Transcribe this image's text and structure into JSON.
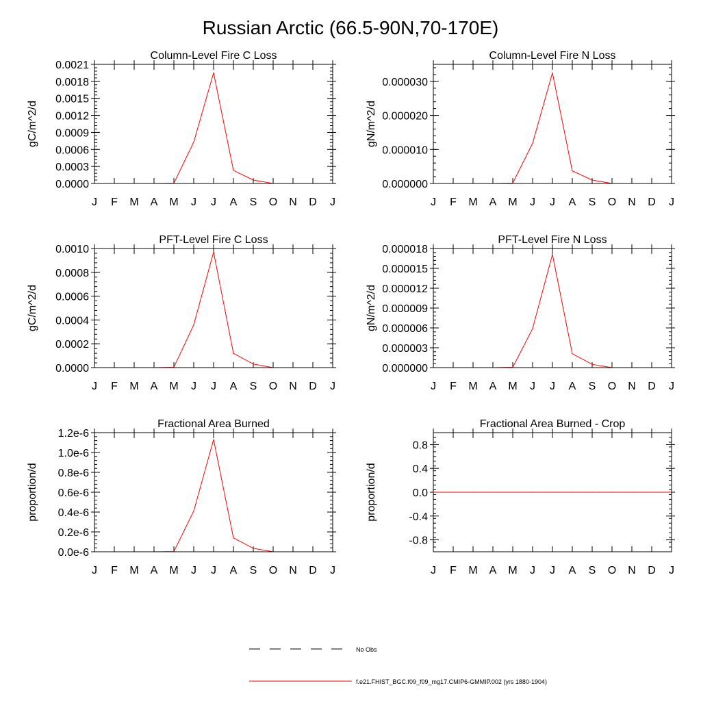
{
  "figure": {
    "title": "Russian Arctic (66.5-90N,70-170E)"
  },
  "legend": {
    "entries": [
      {
        "label": "No Obs",
        "style": "dashed",
        "color": "#000000"
      },
      {
        "label": "f.e21.FHIST_BGC.f09_f09_mg17.CMIP6-GMMIP.002 (yrs 1880-1904)",
        "style": "solid",
        "color": "#ff0000"
      }
    ]
  },
  "chart_data": [
    {
      "type": "line",
      "title": "Column-Level Fire C Loss",
      "ylabel": "gC/m^2/d",
      "categories": [
        "J",
        "F",
        "M",
        "A",
        "M",
        "J",
        "J",
        "A",
        "S",
        "O",
        "N",
        "D",
        "J"
      ],
      "ylim": [
        0,
        0.0021
      ],
      "yticks": [
        0,
        0.0003,
        0.0006,
        0.0009,
        0.0012,
        0.0015,
        0.0018,
        0.0021
      ],
      "ytick_labels": [
        "0.0000",
        "0.0003",
        "0.0006",
        "0.0009",
        "0.0012",
        "0.0015",
        "0.0018",
        "0.0021"
      ],
      "series": [
        {
          "color": "#ff0000",
          "values": [
            0,
            0,
            0,
            0,
            5e-06,
            0.00073,
            0.00195,
            0.00023,
            6e-05,
            0,
            0,
            0,
            0
          ]
        }
      ]
    },
    {
      "type": "line",
      "title": "Column-Level Fire N Loss",
      "ylabel": "gN/m^2/d",
      "categories": [
        "J",
        "F",
        "M",
        "A",
        "M",
        "J",
        "J",
        "A",
        "S",
        "O",
        "N",
        "D",
        "J"
      ],
      "ylim": [
        0,
        3.5e-05
      ],
      "yticks": [
        0,
        1e-05,
        2e-05,
        3e-05
      ],
      "ytick_labels": [
        "0.000000",
        "0.000010",
        "0.000020",
        "0.000030"
      ],
      "series": [
        {
          "color": "#ff0000",
          "values": [
            0,
            0,
            0,
            0,
            1e-07,
            1.18e-05,
            3.25e-05,
            3.7e-06,
            1e-06,
            0,
            0,
            0,
            0
          ]
        }
      ]
    },
    {
      "type": "line",
      "title": "PFT-Level Fire C Loss",
      "ylabel": "gC/m^2/d",
      "categories": [
        "J",
        "F",
        "M",
        "A",
        "M",
        "J",
        "J",
        "A",
        "S",
        "O",
        "N",
        "D",
        "J"
      ],
      "ylim": [
        0,
        0.001
      ],
      "yticks": [
        0,
        0.0002,
        0.0004,
        0.0006,
        0.0008,
        0.001
      ],
      "ytick_labels": [
        "0.0000",
        "0.0002",
        "0.0004",
        "0.0006",
        "0.0008",
        "0.0010"
      ],
      "series": [
        {
          "color": "#ff0000",
          "values": [
            0,
            0,
            0,
            0,
            3e-06,
            0.00036,
            0.00097,
            0.00012,
            3e-05,
            0,
            0,
            0,
            0
          ]
        }
      ]
    },
    {
      "type": "line",
      "title": "PFT-Level Fire N Loss",
      "ylabel": "gN/m^2/d",
      "categories": [
        "J",
        "F",
        "M",
        "A",
        "M",
        "J",
        "J",
        "A",
        "S",
        "O",
        "N",
        "D",
        "J"
      ],
      "ylim": [
        0,
        1.8e-05
      ],
      "yticks": [
        0,
        3e-06,
        6e-06,
        9e-06,
        1.2e-05,
        1.5e-05,
        1.8e-05
      ],
      "ytick_labels": [
        "0.000000",
        "0.000003",
        "0.000006",
        "0.000009",
        "0.000012",
        "0.000015",
        "0.000018"
      ],
      "series": [
        {
          "color": "#ff0000",
          "values": [
            0,
            0,
            0,
            0,
            5e-08,
            5.9e-06,
            1.71e-05,
            2.1e-06,
            5e-07,
            0,
            0,
            0,
            0
          ]
        }
      ]
    },
    {
      "type": "line",
      "title": "Fractional Area Burned",
      "ylabel": "proportion/d",
      "categories": [
        "J",
        "F",
        "M",
        "A",
        "M",
        "J",
        "J",
        "A",
        "S",
        "O",
        "N",
        "D",
        "J"
      ],
      "ylim": [
        0,
        1.2e-06
      ],
      "yticks": [
        0,
        2e-07,
        4e-07,
        6e-07,
        8e-07,
        1e-06,
        1.2e-06
      ],
      "ytick_labels": [
        "0.0e-6",
        "0.2e-6",
        "0.4e-6",
        "0.6e-6",
        "0.8e-6",
        "1.0e-6",
        "1.2e-6"
      ],
      "series": [
        {
          "color": "#ff0000",
          "values": [
            0,
            0,
            0,
            0,
            3e-09,
            4.1e-07,
            1.13e-06,
            1.4e-07,
            3.5e-08,
            0,
            0,
            0,
            0
          ]
        }
      ]
    },
    {
      "type": "line",
      "title": "Fractional Area Burned - Crop",
      "ylabel": "proportion/d",
      "categories": [
        "J",
        "F",
        "M",
        "A",
        "M",
        "J",
        "J",
        "A",
        "S",
        "O",
        "N",
        "D",
        "J"
      ],
      "ylim": [
        -1,
        1
      ],
      "yticks": [
        -0.8,
        -0.4,
        0,
        0.4,
        0.8
      ],
      "ytick_labels": [
        "-0.8",
        "-0.4",
        "0.0",
        "0.4",
        "0.8"
      ],
      "series": [
        {
          "color": "#ff0000",
          "values": [
            0,
            0,
            0,
            0,
            0,
            0,
            0,
            0,
            0,
            0,
            0,
            0,
            0
          ]
        }
      ]
    }
  ]
}
